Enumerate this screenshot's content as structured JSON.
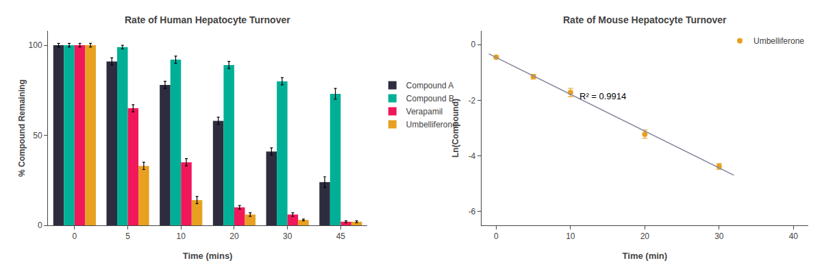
{
  "chart_data": [
    {
      "type": "bar",
      "title": "Rate of Human Hepatocyte Turnover",
      "x_label": "Time (mins)",
      "y_label": "% Compound Remaining",
      "categories": [
        "0",
        "5",
        "10",
        "20",
        "30",
        "45"
      ],
      "series": [
        {
          "name": "Compound A",
          "color": "#2d2d3f",
          "values": [
            100,
            91,
            78,
            58,
            41,
            24
          ],
          "errors": [
            1,
            2,
            2,
            2,
            2,
            3
          ]
        },
        {
          "name": "Compound B",
          "color": "#00b096",
          "values": [
            100,
            99,
            92,
            89,
            80,
            73
          ],
          "errors": [
            1,
            1,
            2,
            2,
            2,
            3
          ]
        },
        {
          "name": "Verapamil",
          "color": "#f0185a",
          "values": [
            100,
            65,
            35,
            10,
            6,
            2
          ],
          "errors": [
            1,
            2,
            2,
            1,
            1,
            0.5
          ]
        },
        {
          "name": "Umbelliferone",
          "color": "#e8a020",
          "values": [
            100,
            33,
            14,
            6,
            3,
            2
          ],
          "errors": [
            1,
            2,
            2,
            1,
            0.5,
            0.5
          ]
        }
      ],
      "ylim": [
        0,
        108
      ],
      "yticks": [
        0,
        50,
        100
      ],
      "grid": false,
      "legend": "right"
    },
    {
      "type": "scatter",
      "title": "Rate of Mouse Hepatocyte Turnover",
      "x_label": "Time (min)",
      "y_label": "Ln(Compound)",
      "series": [
        {
          "name": "Umbelliferone",
          "type": "scatter",
          "color": "#e8a020",
          "marker": "circle",
          "x": [
            0,
            5,
            10,
            20,
            30
          ],
          "values": [
            -0.45,
            -1.15,
            -1.72,
            -3.22,
            -4.38
          ],
          "errors": [
            0.05,
            0.08,
            0.15,
            0.15,
            0.1
          ]
        },
        {
          "type": "line",
          "color": "#8888a0",
          "line_style": "solid",
          "x": [
            -1,
            32
          ],
          "values": [
            -0.3304,
            -4.6995
          ]
        }
      ],
      "annotations": [
        {
          "text": "R² = 0.9914",
          "x": 11,
          "y": -2.1
        }
      ],
      "xlim": [
        -2,
        42
      ],
      "xticks": [
        0,
        10,
        20,
        30,
        40
      ],
      "ylim": [
        -6.5,
        0.5
      ],
      "yticks": [
        -6,
        -4,
        -2,
        0
      ],
      "grid": false,
      "legend": "upper right"
    }
  ]
}
